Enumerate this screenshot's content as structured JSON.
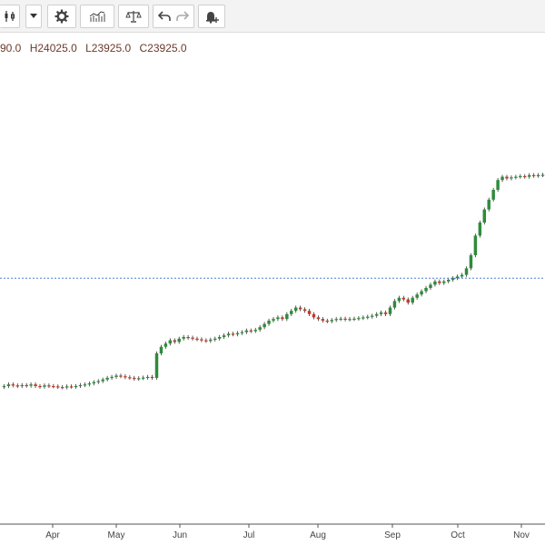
{
  "toolbar": {
    "buttons": [
      {
        "icon": "candlestick-chart-icon"
      },
      {
        "icon": "chevron-down-icon"
      },
      {
        "icon": "gear-icon"
      },
      {
        "icon": "indicators-icon"
      },
      {
        "icon": "compare-scale-icon"
      },
      {
        "icon": "undo-icon"
      },
      {
        "icon": "redo-icon"
      },
      {
        "icon": "alert-bell-icon"
      }
    ]
  },
  "ohlc": {
    "open": "90.0",
    "high": "H24025.0",
    "low": "L23925.0",
    "close": "C23925.0"
  },
  "colors": {
    "up": "#2e8b3a",
    "down": "#c0392b",
    "price_line": "#4a7fd6",
    "axis": "#555555",
    "ohlc_text": "#6b3a2a"
  },
  "chart_data": {
    "type": "candlestick",
    "x_tick_labels": [
      "Apr",
      "May",
      "Jun",
      "Jul",
      "Aug",
      "Sep",
      "Oct",
      "Nov"
    ],
    "current_price_line": 0.53,
    "series_close": [
      0.2,
      0.205,
      0.202,
      0.2,
      0.203,
      0.201,
      0.205,
      0.2,
      0.198,
      0.202,
      0.2,
      0.199,
      0.197,
      0.196,
      0.199,
      0.198,
      0.2,
      0.203,
      0.205,
      0.208,
      0.212,
      0.215,
      0.22,
      0.225,
      0.228,
      0.232,
      0.23,
      0.227,
      0.225,
      0.222,
      0.224,
      0.226,
      0.228,
      0.225,
      0.3,
      0.32,
      0.33,
      0.34,
      0.335,
      0.345,
      0.35,
      0.348,
      0.345,
      0.343,
      0.34,
      0.338,
      0.342,
      0.345,
      0.35,
      0.355,
      0.36,
      0.358,
      0.362,
      0.365,
      0.37,
      0.368,
      0.372,
      0.38,
      0.39,
      0.4,
      0.405,
      0.41,
      0.405,
      0.42,
      0.43,
      0.44,
      0.435,
      0.43,
      0.42,
      0.41,
      0.405,
      0.4,
      0.398,
      0.402,
      0.405,
      0.406,
      0.404,
      0.405,
      0.406,
      0.408,
      0.41,
      0.412,
      0.415,
      0.42,
      0.425,
      0.42,
      0.44,
      0.46,
      0.47,
      0.465,
      0.455,
      0.47,
      0.48,
      0.49,
      0.5,
      0.51,
      0.52,
      0.515,
      0.52,
      0.525,
      0.53,
      0.535,
      0.54,
      0.56,
      0.6,
      0.66,
      0.7,
      0.74,
      0.77,
      0.8,
      0.83,
      0.84,
      0.835,
      0.838,
      0.84,
      0.842,
      0.84,
      0.845,
      0.843,
      0.845,
      0.846
    ]
  }
}
